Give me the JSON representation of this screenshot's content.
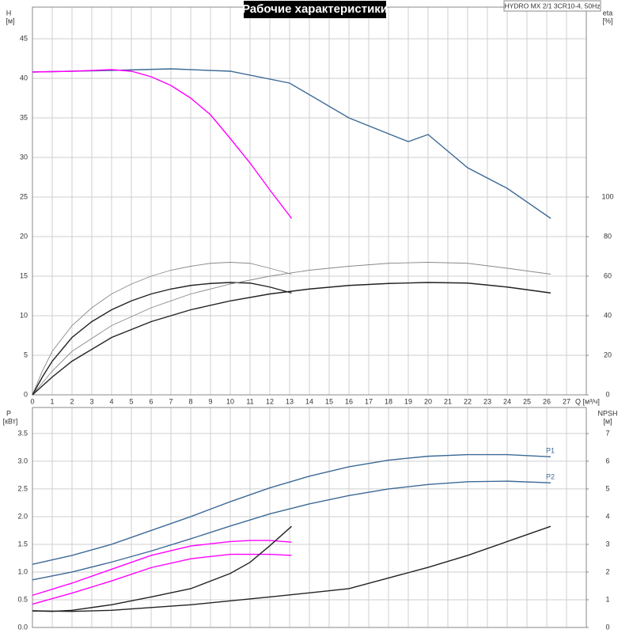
{
  "chart_data": [
    {
      "type": "line",
      "title": "Рабочие характеристики",
      "note": "HYDRO MX 2/1 3CR10-4, 50Hz",
      "ylabel": "H",
      "yunit": "[м]",
      "y2label": "eta",
      "y2unit": "[%]",
      "xlabel": "Q [м³/ч]",
      "xlim": [
        0,
        28
      ],
      "xticks": [
        0,
        1,
        2,
        3,
        4,
        5,
        6,
        7,
        8,
        9,
        10,
        11,
        12,
        13,
        14,
        15,
        16,
        17,
        18,
        19,
        20,
        21,
        22,
        23,
        24,
        25,
        26,
        27
      ],
      "ylim": [
        0,
        49
      ],
      "yticks": [
        0,
        5,
        10,
        15,
        20,
        25,
        30,
        35,
        40,
        45
      ],
      "y2lim": [
        0,
        196
      ],
      "y2ticks": [
        0,
        20,
        40,
        60,
        80,
        100
      ],
      "grid": true,
      "series": [
        {
          "color": "#3d6a96",
          "x": [
            0,
            2,
            4,
            7,
            10,
            13,
            16,
            19,
            20,
            22,
            24,
            26.2
          ],
          "values": [
            40.8,
            40.9,
            41.0,
            41.2,
            40.9,
            39.4,
            35.0,
            32.0,
            32.9,
            28.7,
            26.1,
            22.3
          ]
        },
        {
          "color": "#ff00ff",
          "x": [
            0,
            2,
            4,
            5,
            6,
            7,
            8,
            9,
            10,
            11,
            12,
            13.1
          ],
          "values": [
            40.8,
            40.9,
            41.1,
            40.9,
            40.2,
            39.1,
            37.5,
            35.4,
            32.4,
            29.3,
            25.9,
            22.3
          ]
        },
        {
          "color": "#888888",
          "axis": "y2",
          "x": [
            0,
            0.5,
            1,
            2,
            3,
            4,
            5,
            6,
            7,
            8,
            9,
            10,
            11,
            12,
            13.1
          ],
          "values": [
            0,
            12,
            22,
            35,
            44,
            51,
            56,
            60,
            63,
            65,
            66.5,
            67,
            66.5,
            64,
            61
          ]
        },
        {
          "color": "#222222",
          "axis": "y2",
          "x": [
            0,
            0.5,
            1,
            2,
            3,
            4,
            5,
            6,
            7,
            8,
            9,
            10,
            11,
            12,
            13.1
          ],
          "values": [
            0,
            9,
            17,
            29,
            37,
            43,
            47.5,
            51,
            53.5,
            55.3,
            56.3,
            56.8,
            56.5,
            54.5,
            51.5
          ]
        },
        {
          "color": "#888888",
          "axis": "y2",
          "x": [
            0,
            1,
            2,
            4,
            6,
            8,
            10,
            12,
            14,
            16,
            18,
            20,
            22,
            24,
            26.2
          ],
          "values": [
            0,
            12,
            22,
            35,
            44,
            51,
            56,
            60,
            63,
            65,
            66.5,
            67,
            66.5,
            64,
            61
          ]
        },
        {
          "color": "#222222",
          "axis": "y2",
          "x": [
            0,
            1,
            2,
            4,
            6,
            8,
            10,
            12,
            14,
            16,
            18,
            20,
            22,
            24,
            26.2
          ],
          "values": [
            0,
            9,
            17,
            29,
            37,
            43,
            47.5,
            51,
            53.5,
            55.3,
            56.3,
            56.8,
            56.5,
            54.5,
            51.5
          ]
        }
      ]
    },
    {
      "type": "line",
      "ylabel": "P",
      "yunit": "[кВт]",
      "y2label": "NPSH",
      "y2unit": "[м]",
      "xlim": [
        0,
        28
      ],
      "xticks": [
        0,
        1,
        2,
        3,
        4,
        5,
        6,
        7,
        8,
        9,
        10,
        11,
        12,
        13,
        14,
        15,
        16,
        17,
        18,
        19,
        20,
        21,
        22,
        23,
        24,
        25,
        26,
        27
      ],
      "ylim": [
        0,
        3.97
      ],
      "yticks": [
        {
          "value": 0,
          "label": "0.0"
        },
        0.5,
        {
          "value": 1,
          "label": "1.0"
        },
        1.5,
        {
          "value": 2,
          "label": "2.0"
        },
        2.5,
        {
          "value": 3,
          "label": "3.0"
        },
        3.5
      ],
      "y2lim": [
        0,
        7.94
      ],
      "y2ticks": [
        0,
        1,
        2,
        3,
        4,
        5,
        6,
        7
      ],
      "grid": true,
      "series": [
        {
          "name": "P1",
          "color": "#3d6a96",
          "x": [
            0,
            2,
            4,
            6,
            8,
            10,
            12,
            14,
            16,
            18,
            20,
            22,
            24,
            26.2
          ],
          "values": [
            1.14,
            1.3,
            1.5,
            1.75,
            2.0,
            2.27,
            2.52,
            2.73,
            2.9,
            3.02,
            3.09,
            3.12,
            3.12,
            3.08
          ]
        },
        {
          "name": "P2",
          "color": "#3d6a96",
          "x": [
            0,
            2,
            4,
            6,
            8,
            10,
            12,
            14,
            16,
            18,
            20,
            22,
            24,
            26.2
          ],
          "values": [
            0.86,
            1.0,
            1.18,
            1.38,
            1.6,
            1.83,
            2.05,
            2.23,
            2.38,
            2.5,
            2.58,
            2.63,
            2.64,
            2.61
          ]
        },
        {
          "color": "#ff00ff",
          "x": [
            0,
            2,
            4,
            6,
            8,
            10,
            11,
            12,
            13.1
          ],
          "values": [
            0.58,
            0.8,
            1.05,
            1.3,
            1.47,
            1.55,
            1.57,
            1.57,
            1.54
          ]
        },
        {
          "color": "#ff00ff",
          "x": [
            0,
            2,
            4,
            6,
            8,
            10,
            12,
            13.1
          ],
          "values": [
            0.42,
            0.62,
            0.84,
            1.08,
            1.24,
            1.32,
            1.32,
            1.3
          ]
        },
        {
          "color": "#222222",
          "axis": "y2",
          "x": [
            0,
            1,
            2,
            4,
            6,
            8,
            10,
            11,
            12,
            13.1
          ],
          "values": [
            0.6,
            0.58,
            0.62,
            0.82,
            1.1,
            1.4,
            1.95,
            2.35,
            2.95,
            3.65
          ]
        },
        {
          "color": "#222222",
          "axis": "y2",
          "x": [
            0,
            2,
            4,
            8,
            12,
            16,
            20,
            22,
            24,
            26.2
          ],
          "values": [
            0.6,
            0.58,
            0.62,
            0.82,
            1.1,
            1.4,
            2.17,
            2.6,
            3.1,
            3.65
          ]
        }
      ]
    }
  ]
}
